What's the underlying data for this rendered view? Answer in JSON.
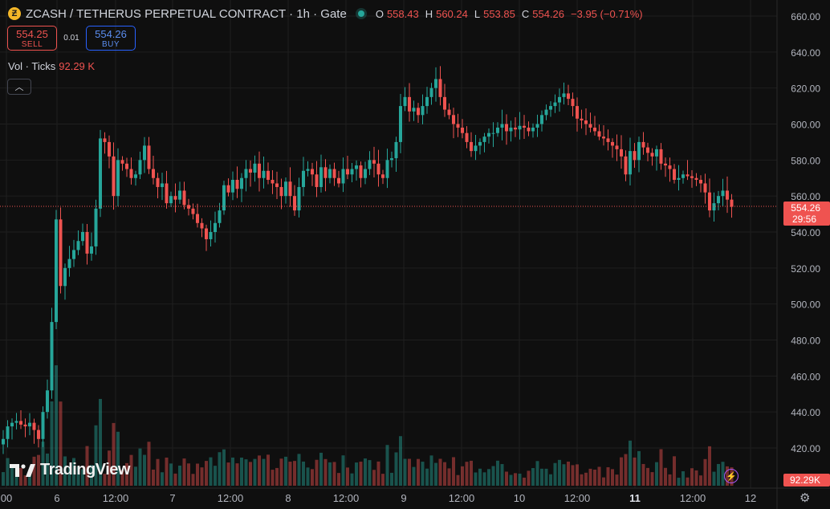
{
  "header": {
    "coin_icon": "zcash-coin-icon",
    "title": "ZCASH / TETHERUS PERPETUAL CONTRACT · 1h · Gate",
    "status_color": "#26a69a",
    "o_label": "O",
    "o_value": "558.43",
    "h_label": "H",
    "h_value": "560.24",
    "l_label": "L",
    "l_value": "553.85",
    "c_label": "C",
    "c_value": "554.26",
    "change": "−3.95 (−0.71%)"
  },
  "trade": {
    "sell_price": "554.25",
    "sell_label": "SELL",
    "spread": "0.01",
    "buy_price": "554.26",
    "buy_label": "BUY"
  },
  "volume_legend": {
    "label": "Vol · Ticks",
    "value": "92.29 K"
  },
  "price_label": {
    "price": "554.26",
    "countdown": "29:56"
  },
  "volume_label": "92.29K",
  "watermark": "TradingView",
  "colors": {
    "up": "#26a69a",
    "down": "#ef5350",
    "background": "#0f0f0f"
  },
  "chart_data": {
    "type": "candlestick",
    "title": "ZCASH / TETHERUS PERPETUAL CONTRACT · 1h · Gate",
    "interval": "1h",
    "y_ticks": [
      "660.00",
      "640.00",
      "620.00",
      "600.00",
      "580.00",
      "560.00",
      "540.00",
      "520.00",
      "500.00",
      "480.00",
      "460.00",
      "440.00",
      "420.00"
    ],
    "ylim": [
      410,
      665
    ],
    "x_ticks": [
      {
        "label": "00",
        "bold": false
      },
      {
        "label": "6",
        "bold": false
      },
      {
        "label": "12:00",
        "bold": false
      },
      {
        "label": "7",
        "bold": false
      },
      {
        "label": "12:00",
        "bold": false
      },
      {
        "label": "8",
        "bold": false
      },
      {
        "label": "12:00",
        "bold": false
      },
      {
        "label": "9",
        "bold": false
      },
      {
        "label": "12:00",
        "bold": false
      },
      {
        "label": "10",
        "bold": false
      },
      {
        "label": "12:00",
        "bold": false
      },
      {
        "label": "11",
        "bold": true
      },
      {
        "label": "12:00",
        "bold": false
      },
      {
        "label": "12",
        "bold": false
      }
    ],
    "last_price": 554.26,
    "grid": true,
    "closes": [
      425,
      432,
      434,
      435,
      433,
      432,
      434,
      430,
      425,
      440,
      452,
      490,
      547,
      510,
      520,
      525,
      530,
      535,
      540,
      528,
      532,
      553,
      592,
      590,
      582,
      560,
      580,
      578,
      575,
      570,
      572,
      580,
      588,
      575,
      570,
      565,
      567,
      556,
      560,
      558,
      563,
      555,
      553,
      550,
      545,
      542,
      536,
      540,
      545,
      552,
      566,
      562,
      569,
      564,
      570,
      575,
      573,
      578,
      570,
      574,
      569,
      567,
      565,
      560,
      568,
      560,
      552,
      565,
      574,
      575,
      572,
      565,
      576,
      570,
      575,
      570,
      567,
      575,
      572,
      575,
      577,
      570,
      575,
      580,
      578,
      572,
      570,
      580,
      581,
      590,
      610,
      615,
      607,
      609,
      605,
      610,
      615,
      620,
      625,
      615,
      608,
      605,
      600,
      598,
      595,
      590,
      585,
      588,
      590,
      593,
      595,
      595,
      598,
      600,
      596,
      598,
      597,
      599,
      598,
      596,
      598,
      600,
      605,
      608,
      610,
      612,
      615,
      617,
      614,
      610,
      603,
      602,
      600,
      598,
      596,
      593,
      592,
      590,
      588,
      586,
      582,
      572,
      585,
      580,
      590,
      587,
      584,
      582,
      586,
      578,
      577,
      575,
      569,
      570,
      572,
      571,
      570,
      569,
      567,
      562,
      552,
      556,
      560,
      563,
      558,
      554
    ],
    "volume_description": "Volume histogram colored by candle direction; highest spikes near the 6 / 12:00 region and around day 9 and day 11."
  }
}
